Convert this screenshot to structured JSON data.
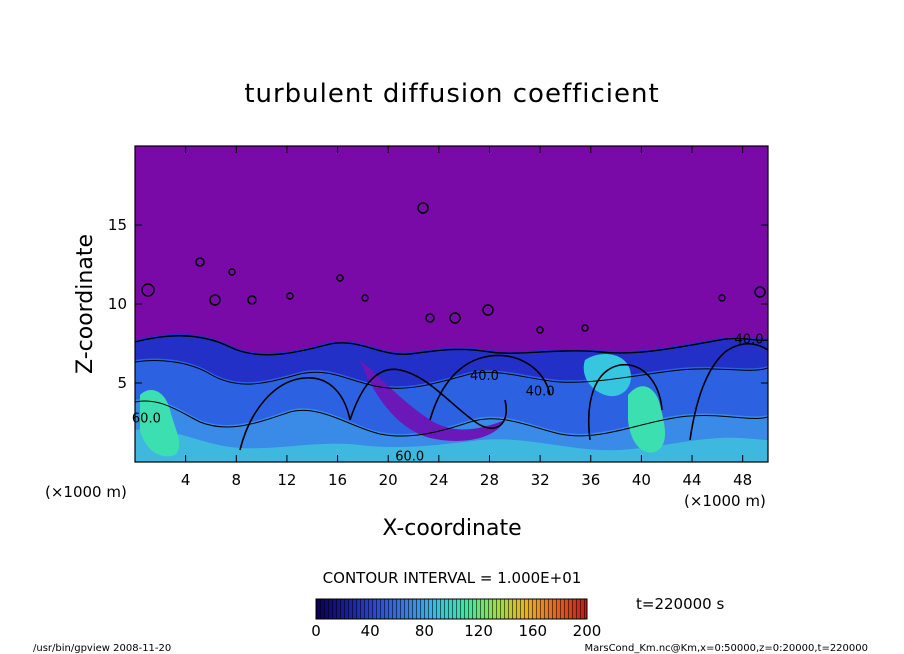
{
  "chart_data": {
    "type": "contour",
    "title": "turbulent diffusion coefficient",
    "xlabel": "X-coordinate",
    "ylabel": "Z-coordinate",
    "x_unit": "(×1000 m)",
    "y_unit": "(×1000 m)",
    "xlim": [
      0,
      50
    ],
    "ylim": [
      0,
      20
    ],
    "x_ticks": [
      4,
      8,
      12,
      16,
      20,
      24,
      28,
      32,
      36,
      40,
      44,
      48
    ],
    "y_ticks": [
      5,
      10,
      15
    ],
    "contour_interval_text": "CONTOUR INTERVAL = 1.000E+01",
    "contour_labels": [
      {
        "text": "60.0",
        "x": 0.9,
        "z": 2.5
      },
      {
        "text": "60.0",
        "x": 21.7,
        "z": 0.1
      },
      {
        "text": "40.0",
        "x": 27.6,
        "z": 5.2
      },
      {
        "text": "40.0",
        "x": 32.0,
        "z": 4.2
      },
      {
        "text": "40.0",
        "x": 48.5,
        "z": 7.5
      }
    ],
    "colorbar": {
      "min": 0,
      "max": 200,
      "ticks": [
        0,
        40,
        80,
        120,
        160,
        200
      ],
      "colors": [
        "#0a0050",
        "#1a1a9e",
        "#2a4ad8",
        "#3a7ae6",
        "#36c0e0",
        "#3ce8a0",
        "#9ce040",
        "#e8b020",
        "#e86020",
        "#c01818"
      ]
    },
    "time_label": "t=220000 s",
    "background_color": "#7a0aa8"
  },
  "footer": {
    "left": "/usr/bin/gpview   2008-11-20",
    "right": "MarsCond_Km.nc@Km,x=0:50000,z=0:20000,t=220000"
  }
}
